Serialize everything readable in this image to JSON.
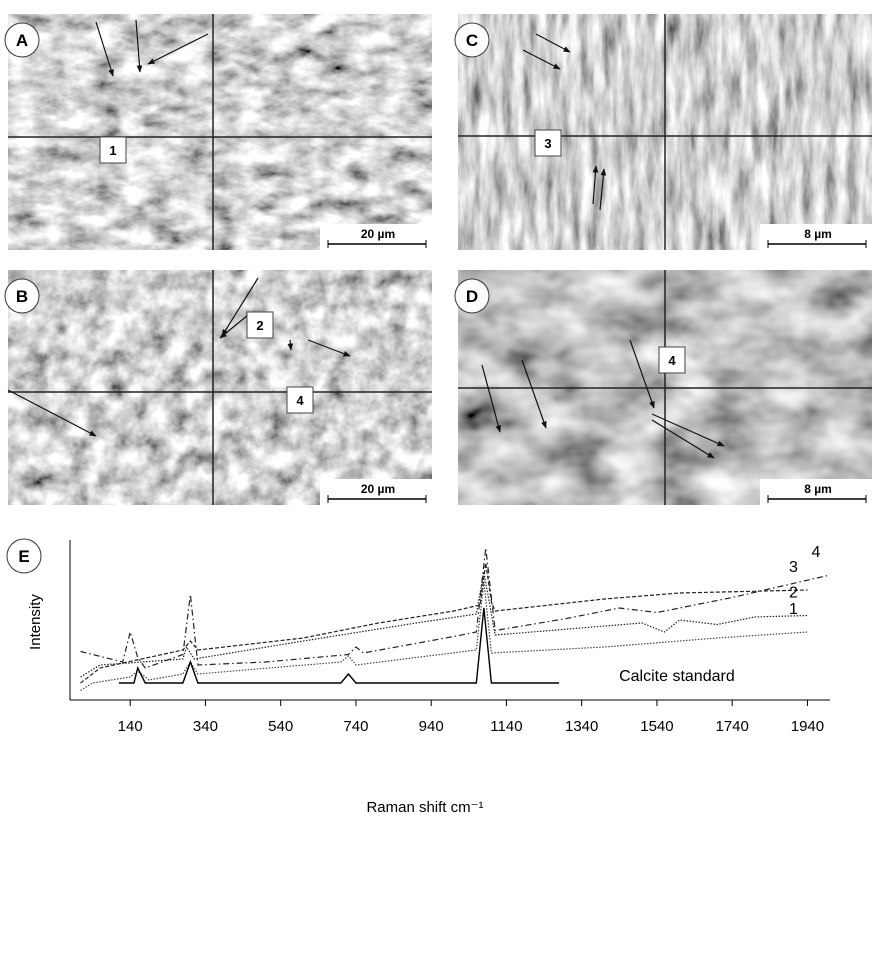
{
  "panels": [
    {
      "letter": "A",
      "scale": "20 µm",
      "markers": [
        "1"
      ]
    },
    {
      "letter": "B",
      "scale": "20 µm",
      "markers": [
        "2",
        "4"
      ]
    },
    {
      "letter": "C",
      "scale": "8 µm",
      "markers": [
        "3"
      ]
    },
    {
      "letter": "D",
      "scale": "8 µm",
      "markers": [
        "4"
      ]
    }
  ],
  "chart_data": {
    "type": "line",
    "panel": "E",
    "xlabel": "Raman shift cm⁻¹",
    "ylabel": "Intensity",
    "xlim": [
      -20,
      2000
    ],
    "xticks": [
      140,
      340,
      540,
      740,
      940,
      1140,
      1340,
      1540,
      1740,
      1940
    ],
    "ylim": [
      0,
      100
    ],
    "series": [
      {
        "name": "4",
        "color": "#222222",
        "style": "dash-dot",
        "x": [
          8,
          120,
          140,
          160,
          180,
          280,
          300,
          320,
          500,
          720,
          740,
          760,
          1000,
          1060,
          1085,
          1110,
          1300,
          1440,
          1540,
          1740,
          2000
        ],
        "values": [
          29,
          22,
          42,
          25,
          18,
          27,
          67,
          20,
          22,
          27,
          32,
          28,
          39,
          42,
          98,
          43,
          51,
          58,
          55,
          65,
          80
        ]
      },
      {
        "name": "3",
        "color": "#222222",
        "style": "dashed",
        "x": [
          8,
          60,
          280,
          300,
          320,
          600,
          800,
          1000,
          1070,
          1085,
          1100,
          1110,
          1400,
          1600,
          1940
        ],
        "values": [
          8,
          18,
          30,
          36,
          30,
          38,
          48,
          56,
          60,
          88,
          62,
          56,
          64,
          68,
          70
        ]
      },
      {
        "name": "2",
        "color": "#222222",
        "style": "dotted",
        "x": [
          8,
          60,
          280,
          290,
          310,
          600,
          900,
          1060,
          1080,
          1100,
          1110,
          1500,
          1560,
          1600,
          1700,
          1800,
          1940
        ],
        "values": [
          12,
          20,
          24,
          32,
          24,
          36,
          48,
          54,
          82,
          54,
          40,
          48,
          42,
          50,
          47,
          52,
          53
        ]
      },
      {
        "name": "1",
        "color": "#444444",
        "style": "dotted",
        "x": [
          8,
          40,
          140,
          160,
          190,
          280,
          300,
          320,
          700,
          720,
          740,
          1060,
          1080,
          1100,
          1400,
          1700,
          1940
        ],
        "values": [
          3,
          8,
          12,
          16,
          10,
          14,
          22,
          14,
          22,
          26,
          20,
          30,
          76,
          28,
          32,
          38,
          42
        ]
      },
      {
        "name": "Calcite standard",
        "color": "#000000",
        "style": "solid",
        "x": [
          110,
          150,
          160,
          180,
          280,
          300,
          320,
          700,
          720,
          740,
          1060,
          1080,
          1100,
          1280
        ],
        "values": [
          8,
          8,
          18,
          8,
          8,
          22,
          8,
          8,
          14,
          8,
          8,
          58,
          8,
          8
        ]
      }
    ]
  }
}
